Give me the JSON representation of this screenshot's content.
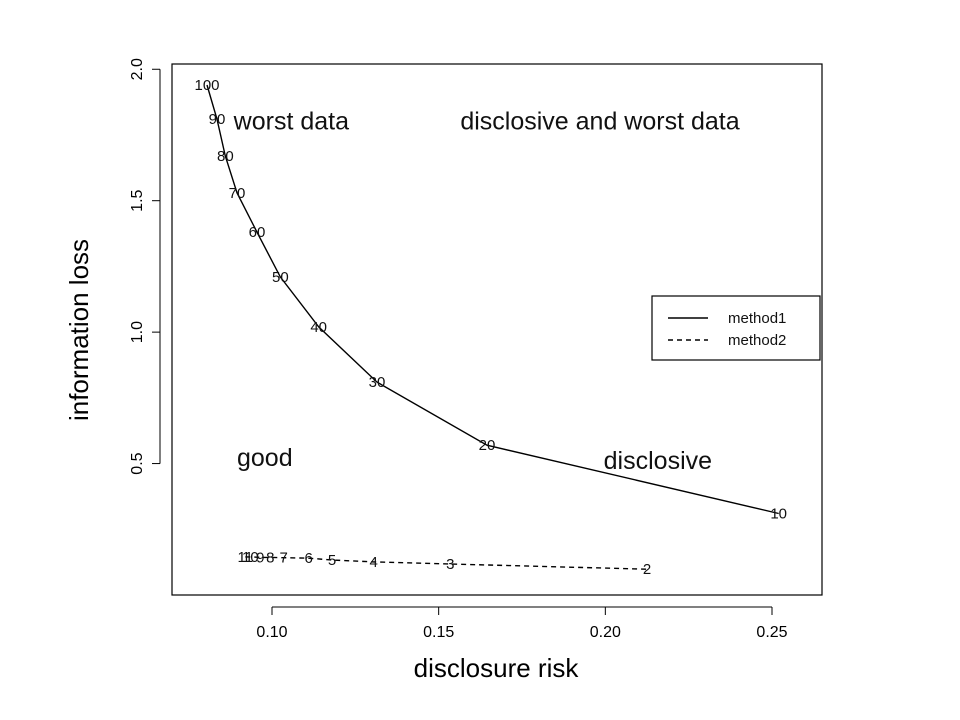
{
  "chart_data": {
    "type": "line",
    "xlabel": "disclosure risk",
    "ylabel": "information loss",
    "xlim": [
      0.07,
      0.265
    ],
    "ylim": [
      0.0,
      2.02
    ],
    "x_ticks": [
      0.1,
      0.15,
      0.2,
      0.25
    ],
    "x_tick_labels": [
      "0.10",
      "0.15",
      "0.20",
      "0.25"
    ],
    "y_ticks": [
      0.5,
      1.0,
      1.5,
      2.0
    ],
    "y_tick_labels": [
      "0.5",
      "1.0",
      "1.5",
      "2.0"
    ],
    "grid": false,
    "legend_position": "right",
    "series": [
      {
        "name": "method1",
        "line_style": "solid",
        "points": [
          {
            "x": 0.0805,
            "y": 1.94,
            "label": "100"
          },
          {
            "x": 0.0835,
            "y": 1.81,
            "label": "90"
          },
          {
            "x": 0.086,
            "y": 1.67,
            "label": "80"
          },
          {
            "x": 0.0895,
            "y": 1.53,
            "label": "70"
          },
          {
            "x": 0.0955,
            "y": 1.38,
            "label": "60"
          },
          {
            "x": 0.1025,
            "y": 1.21,
            "label": "50"
          },
          {
            "x": 0.114,
            "y": 1.02,
            "label": "40"
          },
          {
            "x": 0.1315,
            "y": 0.81,
            "label": "30"
          },
          {
            "x": 0.1645,
            "y": 0.57,
            "label": "20"
          },
          {
            "x": 0.252,
            "y": 0.31,
            "label": "10"
          }
        ]
      },
      {
        "name": "method2",
        "line_style": "dashed",
        "points": [
          {
            "x": 0.092,
            "y": 0.145,
            "label": "11"
          },
          {
            "x": 0.0935,
            "y": 0.145,
            "label": "10"
          },
          {
            "x": 0.0965,
            "y": 0.143,
            "label": "9"
          },
          {
            "x": 0.0995,
            "y": 0.143,
            "label": "8"
          },
          {
            "x": 0.1035,
            "y": 0.142,
            "label": "7"
          },
          {
            "x": 0.111,
            "y": 0.14,
            "label": "6"
          },
          {
            "x": 0.118,
            "y": 0.133,
            "label": "5"
          },
          {
            "x": 0.1305,
            "y": 0.126,
            "label": "4"
          },
          {
            "x": 0.1535,
            "y": 0.118,
            "label": "3"
          },
          {
            "x": 0.2125,
            "y": 0.098,
            "label": "2"
          }
        ]
      }
    ],
    "annotations": [
      {
        "text": "worst data",
        "x": 0.0885,
        "y": 1.77
      },
      {
        "text": "disclosive and worst data",
        "x": 0.1565,
        "y": 1.77
      },
      {
        "text": "good",
        "x": 0.0895,
        "y": 0.49
      },
      {
        "text": "disclosive",
        "x": 0.1995,
        "y": 0.48
      }
    ]
  }
}
